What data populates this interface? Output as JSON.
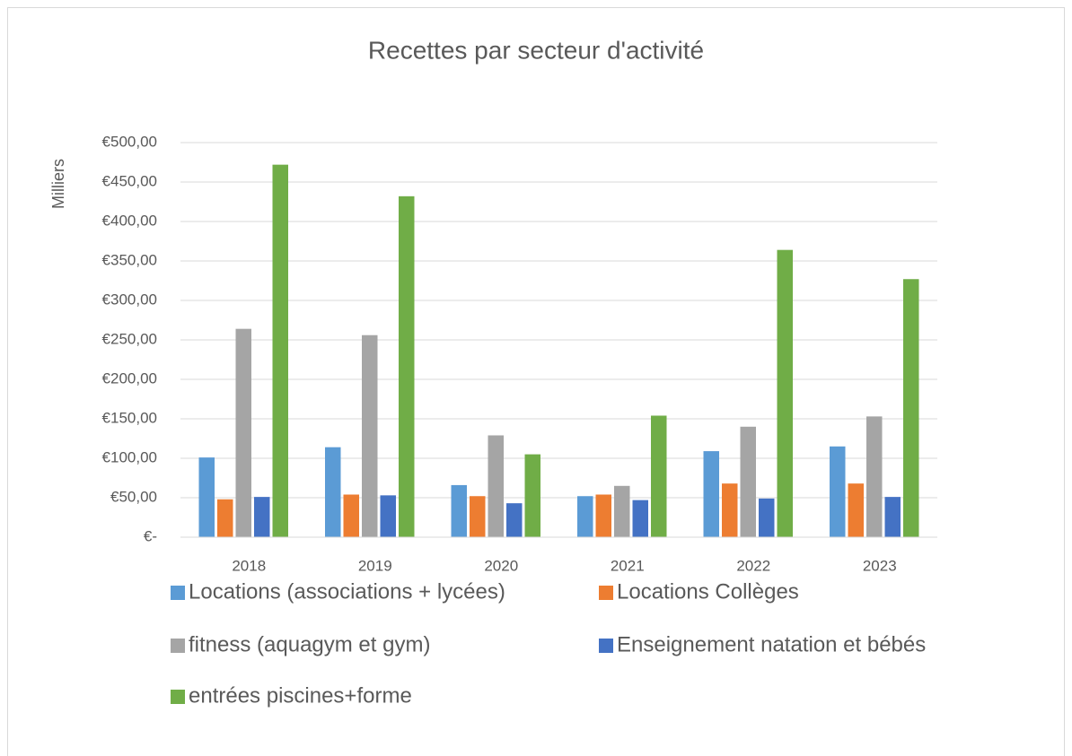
{
  "chart_data": {
    "type": "bar",
    "title": "Recettes par secteur d'activité",
    "y_label": "Milliers",
    "categories": [
      "2018",
      "2019",
      "2020",
      "2021",
      "2022",
      "2023"
    ],
    "series": [
      {
        "name": "Locations (associations + lycées)",
        "color": "#5b9bd5",
        "values": [
          101,
          114,
          66,
          52,
          109,
          115
        ]
      },
      {
        "name": "Locations Collèges",
        "color": "#ed7d31",
        "values": [
          48,
          54,
          52,
          54,
          68,
          68
        ]
      },
      {
        "name": "fitness (aquagym et gym)",
        "color": "#a5a5a5",
        "values": [
          264,
          256,
          129,
          65,
          140,
          153
        ]
      },
      {
        "name": "Enseignement natation et bébés",
        "color": "#4472c4",
        "values": [
          51,
          53,
          43,
          47,
          49,
          51
        ]
      },
      {
        "name": "entrées piscines+forme",
        "color": "#70ad47",
        "values": [
          472,
          432,
          105,
          154,
          364,
          327
        ]
      }
    ],
    "ylim": [
      0,
      500
    ],
    "yticks": [
      {
        "value": 0,
        "label": "€-"
      },
      {
        "value": 50,
        "label": "€50,00"
      },
      {
        "value": 100,
        "label": "€100,00"
      },
      {
        "value": 150,
        "label": "€150,00"
      },
      {
        "value": 200,
        "label": "€200,00"
      },
      {
        "value": 250,
        "label": "€250,00"
      },
      {
        "value": 300,
        "label": "€300,00"
      },
      {
        "value": 350,
        "label": "€350,00"
      },
      {
        "value": 400,
        "label": "€400,00"
      },
      {
        "value": 450,
        "label": "€450,00"
      },
      {
        "value": 500,
        "label": "€500,00"
      }
    ],
    "grid": true,
    "legend": "bottom"
  }
}
